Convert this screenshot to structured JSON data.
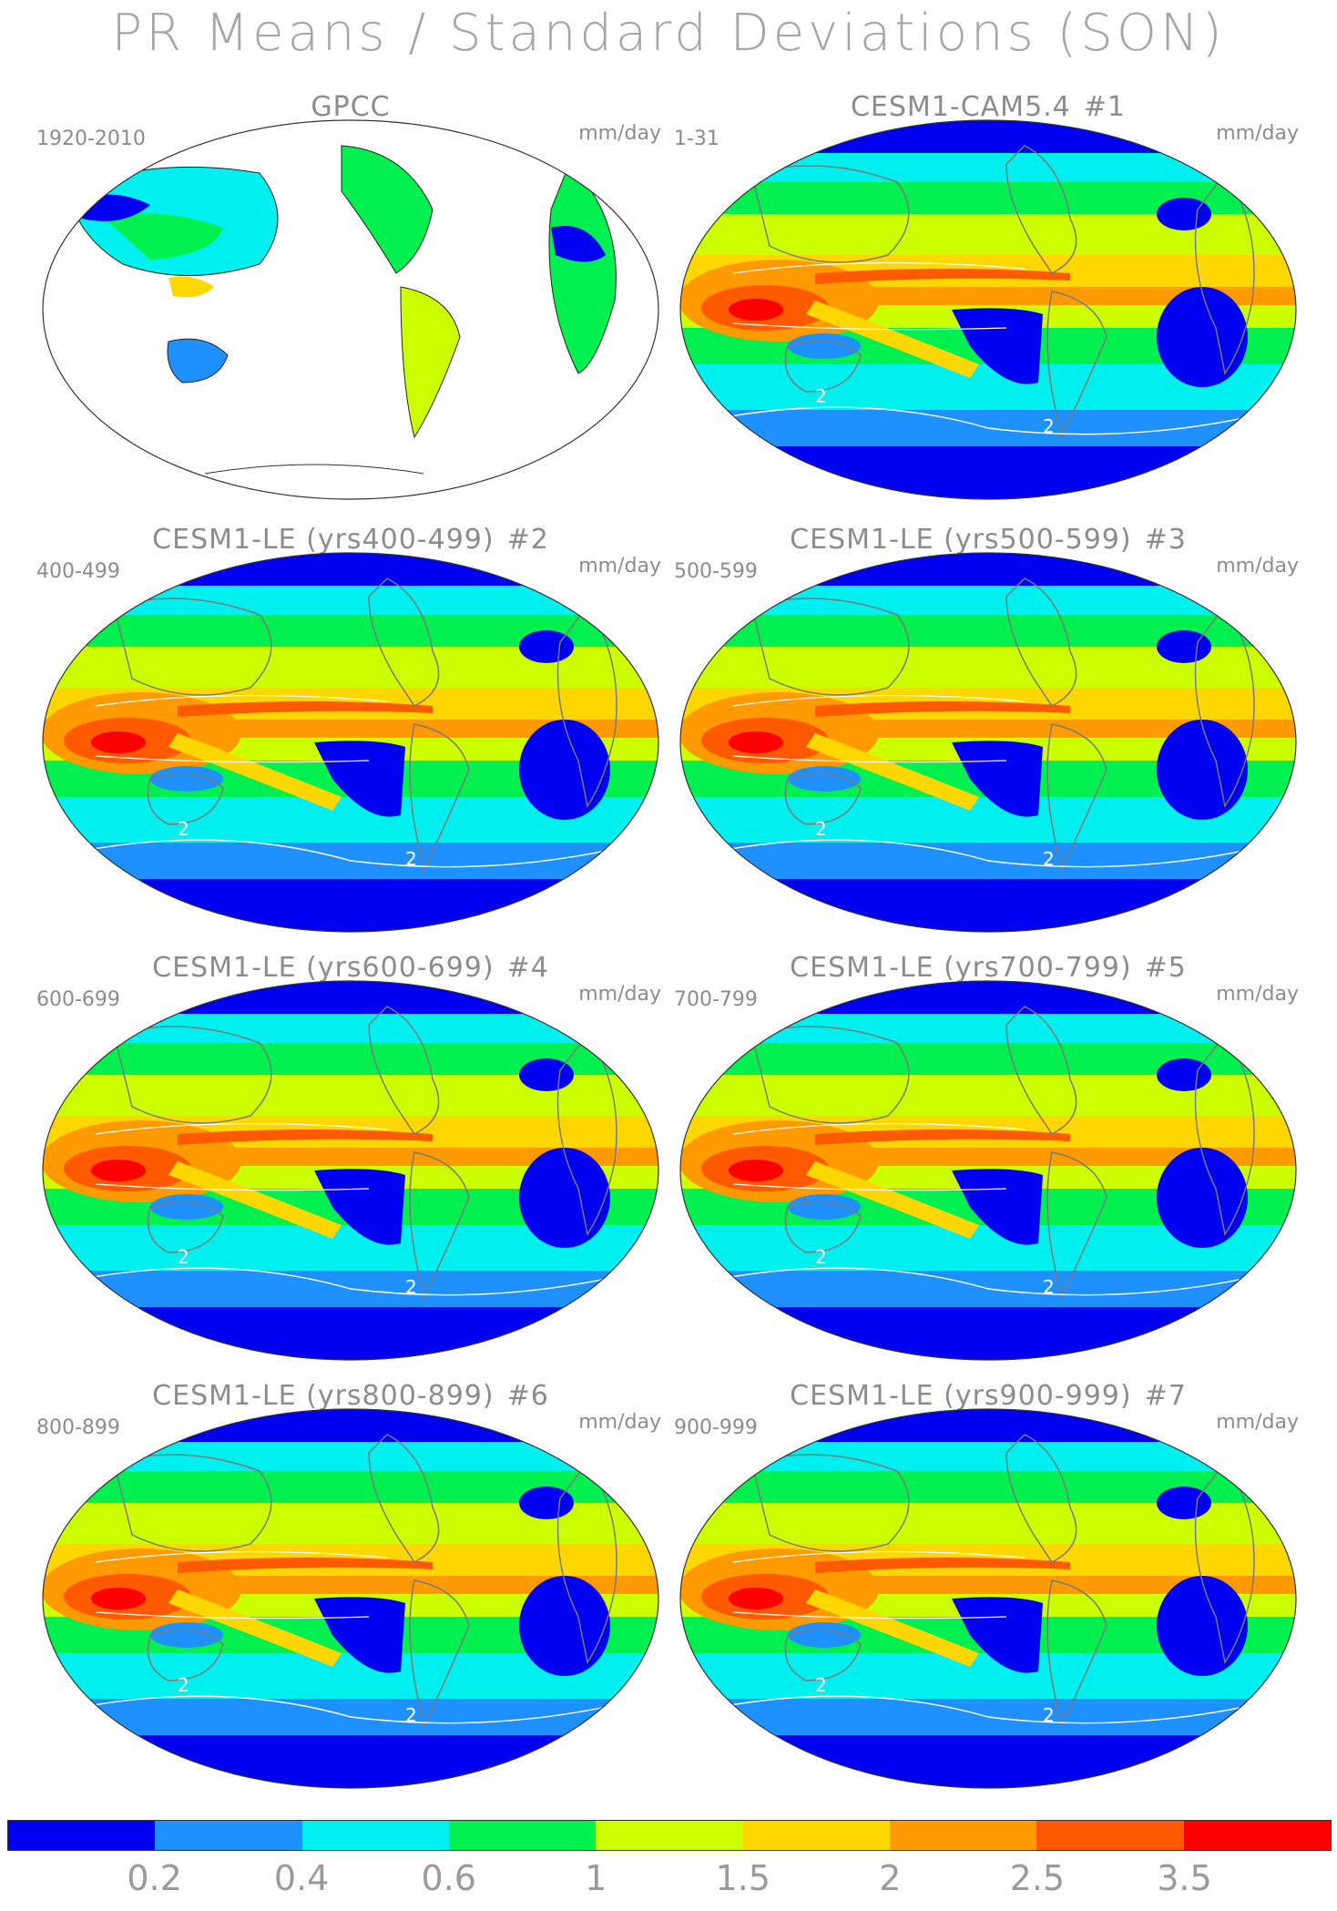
{
  "figure": {
    "title": "PR Means / Standard Deviations (SON)"
  },
  "panels": [
    {
      "id": "gpcc",
      "title": "GPCC",
      "number": "",
      "years": "1920-2010",
      "units": "mm/day",
      "kind": "obs"
    },
    {
      "id": "m1",
      "title": "CESM1-CAM5.4",
      "number": "#1",
      "years": "1-31",
      "units": "mm/day",
      "kind": "model"
    },
    {
      "id": "m2",
      "title": "CESM1-LE (yrs400-499)",
      "number": "#2",
      "years": "400-499",
      "units": "mm/day",
      "kind": "model"
    },
    {
      "id": "m3",
      "title": "CESM1-LE (yrs500-599)",
      "number": "#3",
      "years": "500-599",
      "units": "mm/day",
      "kind": "model"
    },
    {
      "id": "m4",
      "title": "CESM1-LE (yrs600-699)",
      "number": "#4",
      "years": "600-699",
      "units": "mm/day",
      "kind": "model"
    },
    {
      "id": "m5",
      "title": "CESM1-LE (yrs700-799)",
      "number": "#5",
      "years": "700-799",
      "units": "mm/day",
      "kind": "model"
    },
    {
      "id": "m6",
      "title": "CESM1-LE (yrs800-899)",
      "number": "#6",
      "years": "800-899",
      "units": "mm/day",
      "kind": "model"
    },
    {
      "id": "m7",
      "title": "CESM1-LE (yrs900-999)",
      "number": "#7",
      "years": "900-999",
      "units": "mm/day",
      "kind": "model"
    }
  ],
  "colorbar": {
    "colors": [
      "#0000f0",
      "#1e90ff",
      "#00f0f0",
      "#00f050",
      "#ccff00",
      "#ffd700",
      "#ff9a00",
      "#ff5a00",
      "#ff0000"
    ],
    "tick_labels": [
      "0.2",
      "0.4",
      "0.6",
      "1",
      "1.5",
      "2",
      "2.5",
      "3.5"
    ]
  },
  "contour_labels": {
    "std_dev_label": "2"
  }
}
